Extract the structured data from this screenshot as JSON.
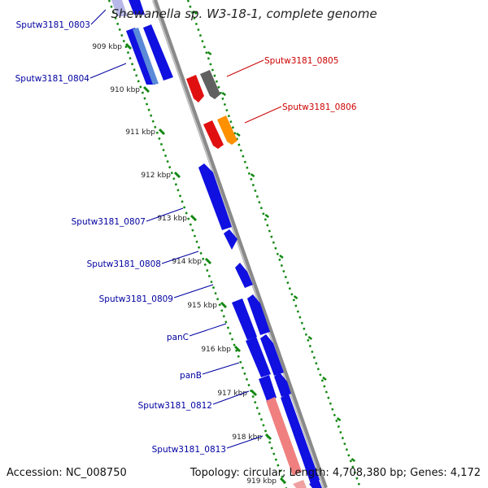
{
  "title": "Shewanella sp. W3-18-1, complete genome",
  "accession": "Accession: NC_008750",
  "topology": "Topology: circular; Length: 4,708,380 bp; Genes: 4,172",
  "colors": {
    "backbone": "#8a8a8a",
    "forward_gene": "#1010e0",
    "reverse_red": "#e01010",
    "reverse_gray": "#606060",
    "reverse_orange": "#ff9000",
    "reverse_pink": "#f08080",
    "label_blue": "#0000a0",
    "label_red": "#cc0000",
    "ruler": "#118811"
  },
  "ticks": [
    {
      "label": "909 kbp"
    },
    {
      "label": "910 kbp"
    },
    {
      "label": "911 kbp"
    },
    {
      "label": "912 kbp"
    },
    {
      "label": "913 kbp"
    },
    {
      "label": "914 kbp"
    },
    {
      "label": "915 kbp"
    },
    {
      "label": "916 kbp"
    },
    {
      "label": "917 kbp"
    },
    {
      "label": "918 kbp"
    },
    {
      "label": "919 kbp"
    }
  ],
  "genes": [
    {
      "name": "Sputw3181_0803",
      "strand": "+"
    },
    {
      "name": "Sputw3181_0804",
      "strand": "+"
    },
    {
      "name": "Sputw3181_0805",
      "strand": "-"
    },
    {
      "name": "Sputw3181_0806",
      "strand": "-"
    },
    {
      "name": "Sputw3181_0807",
      "strand": "+"
    },
    {
      "name": "Sputw3181_0808",
      "strand": "+"
    },
    {
      "name": "Sputw3181_0809",
      "strand": "+"
    },
    {
      "name": "panC",
      "strand": "+"
    },
    {
      "name": "panB",
      "strand": "+"
    },
    {
      "name": "Sputw3181_0812",
      "strand": "+"
    },
    {
      "name": "Sputw3181_0813",
      "strand": "+"
    }
  ]
}
